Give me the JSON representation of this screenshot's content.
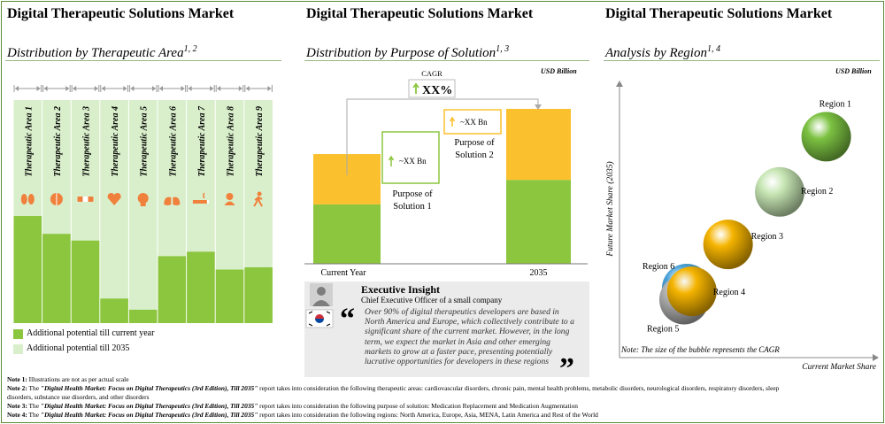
{
  "panels": {
    "left": {
      "title": "Digital Therapeutic Solutions Market",
      "subtitle": "Distribution by Therapeutic  Area",
      "sup": "1, 2"
    },
    "middle": {
      "title": "Digital Therapeutic Solutions Market",
      "subtitle": "Distribution by Purpose of Solution",
      "sup": "1, 3",
      "unit": "USD Billion"
    },
    "right": {
      "title": "Digital Therapeutic Solutions Market",
      "subtitle": "Analysis by Region",
      "sup": "1, 4",
      "unit": "USD Billion"
    }
  },
  "chart_data": [
    {
      "type": "bar",
      "title": "Distribution by Therapeutic  Area",
      "categories": [
        "Therapeutic Area 1",
        "Therapeutic Area 2",
        "Therapeutic Area 3",
        "Therapeutic Area 4",
        "Therapeutic Area 5",
        "Therapeutic Area 6",
        "Therapeutic Area 7",
        "Therapeutic Area 8",
        "Therapeutic Area 9"
      ],
      "icons": [
        "kidney-icon",
        "brain-icon",
        "bandage-icon",
        "heart-icon",
        "head-icon",
        "lungs-icon",
        "smoking-icon",
        "person-icon",
        "walking-icon"
      ],
      "series": [
        {
          "name": "Additional potential till current year",
          "values": [
            0.48,
            0.4,
            0.37,
            0.11,
            0.06,
            0.3,
            0.32,
            0.24,
            0.25
          ]
        },
        {
          "name": "Additional potential till 2035",
          "values": [
            1.0,
            1.0,
            1.0,
            1.0,
            1.0,
            1.0,
            1.0,
            1.0,
            1.0
          ]
        }
      ],
      "legend_position": "bottom-left"
    },
    {
      "type": "bar",
      "title": "Distribution by Purpose of Solution",
      "categories": [
        "Current Year",
        "2035"
      ],
      "stack": [
        {
          "segment": "Purpose of Solution 1",
          "values": [
            0.46,
            0.65
          ]
        },
        {
          "segment": "Purpose of Solution 2",
          "values": [
            0.39,
            0.55
          ]
        }
      ],
      "bridge": [
        {
          "label": "Purpose of Solution 1",
          "value_label": "~XX Bn"
        },
        {
          "label": "Purpose of Solution 2",
          "value_label": "~XX Bn"
        }
      ],
      "cagr_label": "CAGR",
      "cagr_value": "XX%",
      "unit": "USD Billion"
    },
    {
      "type": "scatter",
      "title": "Analysis by Region",
      "xlabel": "Current Market Share",
      "ylabel": "Future Market Share (2035)",
      "points": [
        {
          "name": "Region 1",
          "x": 0.8,
          "y": 0.8,
          "size": 1.0,
          "color": "#7cc242"
        },
        {
          "name": "Region 2",
          "x": 0.62,
          "y": 0.6,
          "size": 1.0,
          "color": "#c7e6b4"
        },
        {
          "name": "Region 3",
          "x": 0.42,
          "y": 0.41,
          "size": 1.0,
          "color": "#f5b400"
        },
        {
          "name": "Region 4",
          "x": 0.28,
          "y": 0.24,
          "size": 1.0,
          "color": "#f5b400"
        },
        {
          "name": "Region 5",
          "x": 0.25,
          "y": 0.21,
          "size": 1.0,
          "color": "#b0b0b0"
        },
        {
          "name": "Region 6",
          "x": 0.26,
          "y": 0.25,
          "size": 1.0,
          "color": "#4aa3d9"
        }
      ],
      "bubble_note": "Note: The size of the bubble represents the CAGR"
    }
  ],
  "legend": {
    "current": "Additional potential till current year",
    "future": "Additional potential till 2035"
  },
  "colors": {
    "green": "#8cc63e",
    "light_green": "#d9efcb",
    "orange": "#f0813c",
    "gold": "#fbc02d",
    "border": "#5a8a3a"
  },
  "insight": {
    "heading": "Executive Insight",
    "role": "Chief Executive Officer of a small company",
    "quote": "Over 90% of digital therapeutics developers are based in North America and Europe, which collectively contribute to a significant share of the current market. However, in the long term, we expect the market in Asia and other emerging markets to grow at a faster pace, presenting potentially lucrative opportunities for developers in these regions"
  },
  "notes": [
    {
      "label": "Note 1:",
      "text": " Illustrations are not as per actual scale"
    },
    {
      "label": "Note 2:",
      "prefix": " The ",
      "report": "\"Digital Health Market: Focus on Digital Therapeutics (3rd Edition), Till 2035\"",
      "text": " report takes into consideration the following therapeutic areas: cardiovascular disorders, chronic pain, mental health problems, metabolic disorders, neurological disorders, respiratory disorders, sleep"
    },
    {
      "label": "",
      "text": "disorders, substance use disorders, and other disorders"
    },
    {
      "label": "Note 3:",
      "prefix": " The ",
      "report": "\"Digital Health Market: Focus on Digital Therapeutics (3rd Edition), Till 2035\"",
      "text": " report takes into consideration the following purpose of solution: Medication Replacement and Medication Augmentation"
    },
    {
      "label": "Note 4:",
      "prefix": " The ",
      "report": "\"Digital Health Market: Focus on Digital Therapeutics (3rd Edition), Till 2035\"",
      "text": " report takes into consideration the following regions: North America, Europe, Asia, MENA, Latin America and Rest of the World"
    }
  ]
}
